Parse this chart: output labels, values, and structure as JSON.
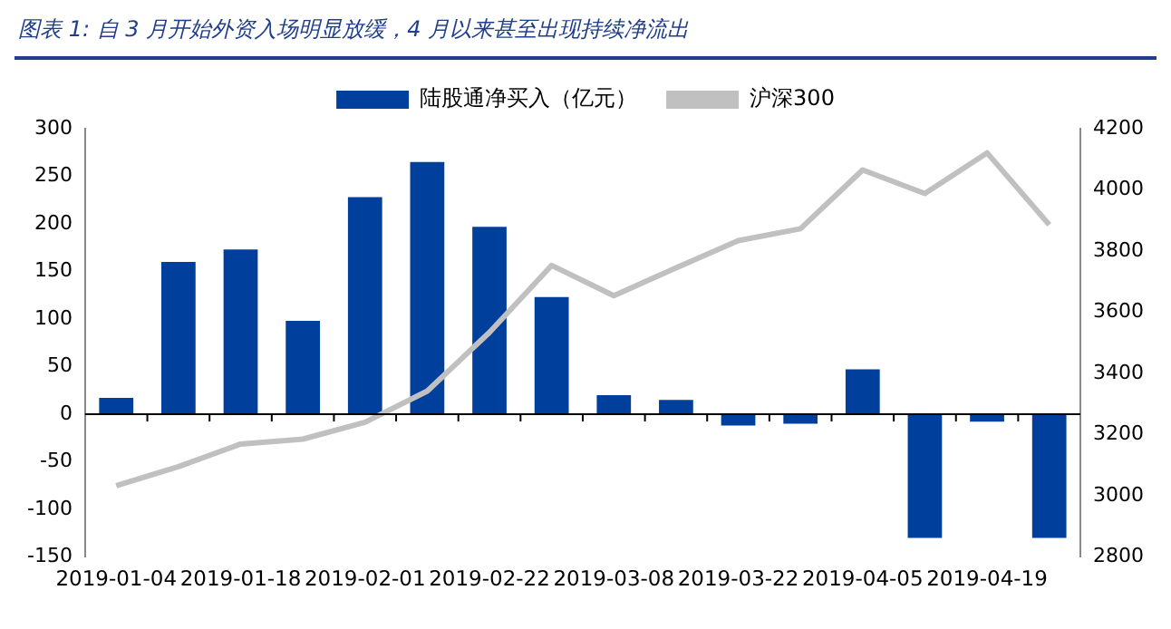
{
  "chart_data": {
    "type": "bar",
    "title": "图表 1:  自 3 月开始外资入场明显放缓，4 月以来甚至出现持续净流出",
    "categories": [
      "2019-01-04",
      null,
      "2019-01-18",
      null,
      "2019-02-01",
      null,
      "2019-02-22",
      null,
      "2019-03-08",
      null,
      "2019-03-22",
      null,
      "2019-04-05",
      null,
      "2019-04-19",
      null
    ],
    "series": [
      {
        "name": "陆股通净买入（亿元）",
        "color": "#003f9b",
        "values": [
          17,
          160,
          173,
          98,
          228,
          265,
          197,
          123,
          20,
          15,
          -12,
          -10,
          47,
          -130,
          -8,
          -130
        ]
      },
      {
        "name": "沪深300",
        "type": "line",
        "axis": "y2",
        "color": "#c0c0c0",
        "values": [
          3033,
          3095,
          3169,
          3185,
          3240,
          3342,
          3534,
          3753,
          3654,
          3745,
          3834,
          3873,
          4065,
          3988,
          4121,
          3886
        ]
      }
    ],
    "ylim": [
      -150,
      300
    ],
    "yticks": [
      -150,
      -100,
      -50,
      0,
      50,
      100,
      150,
      200,
      250,
      300
    ],
    "y2lim": [
      2800,
      4200
    ],
    "y2ticks": [
      2800,
      3000,
      3200,
      3400,
      3600,
      3800,
      4000,
      4200
    ],
    "ref_lines": [
      {
        "axis": "y",
        "value": 0,
        "color": "#000000"
      }
    ],
    "legend": "top",
    "marker": "none"
  }
}
